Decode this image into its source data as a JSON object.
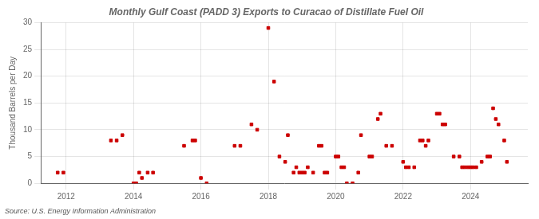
{
  "chart_data": {
    "type": "scatter",
    "title": "Monthly Gulf Coast (PADD 3) Exports to Curacao of Distillate Fuel Oil",
    "ylabel": "Thousand Barrels per Day",
    "annotation": "Source: U.S. Energy Information Administration",
    "color": "#cc0000",
    "marker": "square",
    "grid": true,
    "xlim": [
      2011.25,
      2025.7
    ],
    "xticks": [
      2012,
      2014,
      2016,
      2018,
      2020,
      2022,
      2024
    ],
    "ylim": [
      0,
      30
    ],
    "yticks": [
      0,
      5,
      10,
      15,
      20,
      25,
      30
    ],
    "x": [
      2011.75,
      2011.92,
      2013.33,
      2013.5,
      2013.67,
      2014.0,
      2014.08,
      2014.17,
      2014.25,
      2014.42,
      2014.58,
      2015.5,
      2015.75,
      2015.83,
      2016.0,
      2016.17,
      2017.0,
      2017.17,
      2017.5,
      2017.67,
      2018.0,
      2018.17,
      2018.33,
      2018.5,
      2018.58,
      2018.75,
      2018.83,
      2018.92,
      2019.0,
      2019.08,
      2019.17,
      2019.33,
      2019.5,
      2019.58,
      2019.67,
      2019.75,
      2020.0,
      2020.08,
      2020.17,
      2020.25,
      2020.33,
      2020.5,
      2020.67,
      2020.75,
      2021.0,
      2021.08,
      2021.25,
      2021.33,
      2021.5,
      2021.67,
      2022.0,
      2022.08,
      2022.17,
      2022.33,
      2022.5,
      2022.58,
      2022.67,
      2022.75,
      2023.0,
      2023.08,
      2023.17,
      2023.25,
      2023.5,
      2023.67,
      2023.75,
      2023.83,
      2023.92,
      2024.0,
      2024.08,
      2024.17,
      2024.33,
      2024.5,
      2024.58,
      2024.67,
      2024.75,
      2024.83,
      2025.0,
      2025.08
    ],
    "values": [
      2,
      2,
      8,
      8,
      9,
      0,
      0,
      2,
      1,
      2,
      2,
      7,
      8,
      8,
      1,
      0,
      7,
      7,
      11,
      10,
      29,
      19,
      5,
      4,
      9,
      2,
      3,
      2,
      2,
      2,
      3,
      2,
      7,
      7,
      2,
      2,
      5,
      5,
      3,
      3,
      0,
      0,
      2,
      9,
      5,
      5,
      12,
      13,
      7,
      7,
      4,
      3,
      3,
      3,
      8,
      8,
      7,
      8,
      13,
      13,
      11,
      11,
      5,
      5,
      3,
      3,
      3,
      3,
      3,
      3,
      4,
      5,
      5,
      14,
      12,
      11,
      8,
      4
    ]
  }
}
